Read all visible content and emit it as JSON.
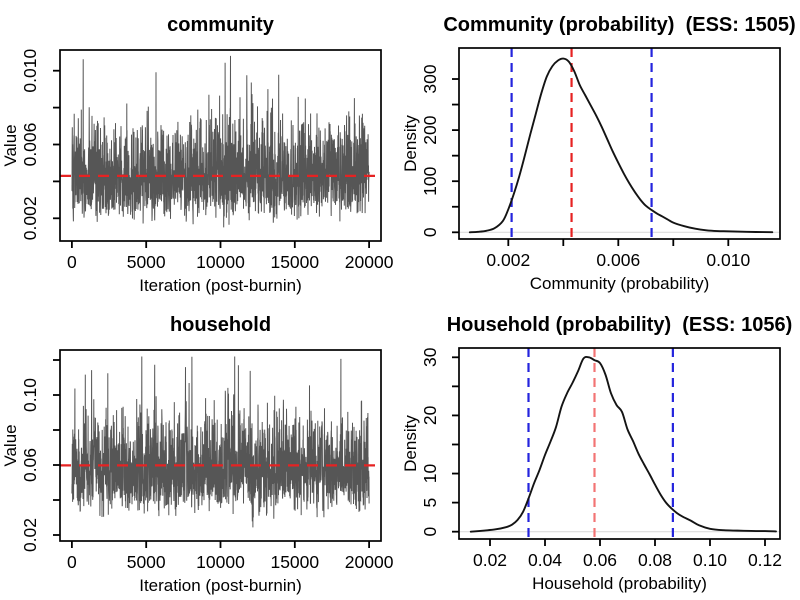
{
  "figure": {
    "background": "#ffffff",
    "text_color": "#000000",
    "colors": {
      "trace": "#4d4d4d",
      "mean_line_red": "#e62222",
      "median_line_red_light": "#f27474",
      "ci_line_blue": "#2424dd",
      "density_curve": "#141414",
      "zero_baseline": "#dddddd",
      "box": "#000000"
    }
  },
  "chart_data": [
    {
      "id": "community-trace",
      "panel": "trace",
      "type": "line",
      "title": "community",
      "xlabel": "Iteration (post-burnin)",
      "ylabel": "Value",
      "x_domain": [
        -800,
        20800
      ],
      "y_domain": [
        0.00077,
        0.011122
      ],
      "x_ticks": [
        0,
        5000,
        10000,
        15000,
        20000
      ],
      "x_tick_labels": [
        "0",
        "5000",
        "10000",
        "15000",
        "20000"
      ],
      "y_ticks": [
        0.002,
        0.004,
        0.006,
        0.008,
        0.01
      ],
      "y_tick_labels": [
        "0.002",
        "",
        "0.006",
        "",
        "0.010"
      ],
      "mean_line": {
        "value": 0.0043,
        "color_key": "mean_line_red",
        "style": "dashed"
      },
      "trace_sim": {
        "n": 2400,
        "dist": "lognormal",
        "mu_log": -5.4727,
        "sigma_log": 0.3,
        "rho": 0.25,
        "clamp": [
          0.00085,
          0.0108
        ],
        "seed": 101,
        "x_start": 0,
        "x_end": 20000
      }
    },
    {
      "id": "community-density",
      "panel": "density",
      "type": "area",
      "title": "Community (probability)  (ESS: 1505)",
      "ess": 1505,
      "xlabel": "Community (probability)",
      "ylabel": "Density",
      "x_domain": [
        0.000207,
        0.01188
      ],
      "y_domain": [
        -13.1,
        360.7
      ],
      "x_ticks": [
        0.002,
        0.004,
        0.006,
        0.008,
        0.01
      ],
      "x_tick_labels": [
        "0.002",
        "",
        "0.006",
        "",
        "0.010"
      ],
      "y_ticks": [
        0,
        50,
        100,
        150,
        200,
        250,
        300
      ],
      "y_tick_labels": [
        "0",
        "",
        "100",
        "",
        "200",
        "",
        "300"
      ],
      "curve": {
        "x": [
          0.0006,
          0.0009,
          0.0012,
          0.0015,
          0.0018,
          0.002,
          0.0022,
          0.0024,
          0.0026,
          0.0028,
          0.003,
          0.0032,
          0.0034,
          0.0036,
          0.0038,
          0.004,
          0.0042,
          0.0044,
          0.0046,
          0.0048,
          0.005,
          0.0052,
          0.0054,
          0.0056,
          0.0058,
          0.006,
          0.0062,
          0.0064,
          0.0066,
          0.0068,
          0.007,
          0.0072,
          0.0074,
          0.0076,
          0.0078,
          0.008,
          0.0084,
          0.0088,
          0.0092,
          0.0096,
          0.01,
          0.0105,
          0.011,
          0.0116
        ],
        "y": [
          0,
          1,
          3,
          8,
          22,
          45,
          75,
          110,
          150,
          192,
          232,
          272,
          305,
          325,
          336,
          340,
          334,
          315,
          288,
          268,
          248,
          228,
          206,
          182,
          158,
          136,
          115,
          96,
          79,
          64,
          52,
          44,
          37,
          31,
          25,
          19,
          12,
          7,
          4,
          2.5,
          2,
          1.2,
          0.6,
          0.2
        ]
      },
      "ci_lines": {
        "values": [
          0.00212,
          0.00721
        ],
        "color_key": "ci_line_blue",
        "style": "dashed"
      },
      "center_line": {
        "value": 0.0043,
        "color_key": "mean_line_red",
        "style": "dashed"
      },
      "zero_baseline": true
    },
    {
      "id": "household-trace",
      "panel": "trace",
      "type": "line",
      "title": "household",
      "xlabel": "Iteration (post-burnin)",
      "ylabel": "Value",
      "x_domain": [
        -800,
        20800
      ],
      "y_domain": [
        0.016573,
        0.12572
      ],
      "x_ticks": [
        0,
        5000,
        10000,
        15000,
        20000
      ],
      "x_tick_labels": [
        "0",
        "5000",
        "10000",
        "15000",
        "20000"
      ],
      "y_ticks": [
        0.02,
        0.04,
        0.06,
        0.08,
        0.1,
        0.12
      ],
      "y_tick_labels": [
        "0.02",
        "",
        "0.06",
        "",
        "0.10",
        ""
      ],
      "mean_line": {
        "value": 0.0598,
        "color_key": "mean_line_red",
        "style": "dashed"
      },
      "trace_sim": {
        "n": 2400,
        "dist": "lognormal",
        "mu_log": -2.856,
        "sigma_log": 0.23,
        "rho": 0.25,
        "clamp": [
          0.019,
          0.122
        ],
        "seed": 202,
        "x_start": 0,
        "x_end": 20000
      }
    },
    {
      "id": "household-density",
      "panel": "density",
      "type": "area",
      "title": "Household (probability)  (ESS: 1056)",
      "ess": 1056,
      "xlabel": "Household (probability)",
      "ylabel": "Density",
      "x_domain": [
        0.008725,
        0.125455
      ],
      "y_domain": [
        -1.26,
        31.6
      ],
      "x_ticks": [
        0.02,
        0.04,
        0.06,
        0.08,
        0.1,
        0.12
      ],
      "x_tick_labels": [
        "0.02",
        "0.04",
        "0.06",
        "0.08",
        "0.10",
        "0.12"
      ],
      "y_ticks": [
        0,
        5,
        10,
        15,
        20,
        25,
        30
      ],
      "y_tick_labels": [
        "0",
        "5",
        "10",
        "",
        "20",
        "",
        "30"
      ],
      "curve": {
        "x": [
          0.013,
          0.018,
          0.022,
          0.026,
          0.028,
          0.03,
          0.032,
          0.034,
          0.036,
          0.038,
          0.04,
          0.042,
          0.044,
          0.046,
          0.048,
          0.05,
          0.052,
          0.054,
          0.056,
          0.058,
          0.06,
          0.062,
          0.064,
          0.066,
          0.068,
          0.07,
          0.072,
          0.074,
          0.076,
          0.078,
          0.08,
          0.082,
          0.084,
          0.086,
          0.088,
          0.09,
          0.093,
          0.096,
          0.1,
          0.105,
          0.11,
          0.115,
          0.12,
          0.124
        ],
        "y": [
          0,
          0.2,
          0.4,
          0.8,
          1.2,
          2,
          3.4,
          5.7,
          8.3,
          10.6,
          13.2,
          15.5,
          18,
          21.5,
          23.8,
          25.6,
          27.6,
          29.8,
          30,
          29.5,
          29,
          27,
          23.8,
          21.8,
          20.6,
          17.6,
          15.6,
          13.4,
          11.6,
          9.9,
          8.1,
          6.4,
          5,
          4,
          3.2,
          2.6,
          1.9,
          1.1,
          0.5,
          0.25,
          0.18,
          0.12,
          0.1,
          0.05
        ]
      },
      "ci_lines": {
        "values": [
          0.034,
          0.0865
        ],
        "color_key": "ci_line_blue",
        "style": "dashed"
      },
      "center_line": {
        "value": 0.058,
        "color_key": "median_line_red_light",
        "style": "dashed"
      },
      "zero_baseline": true
    }
  ]
}
